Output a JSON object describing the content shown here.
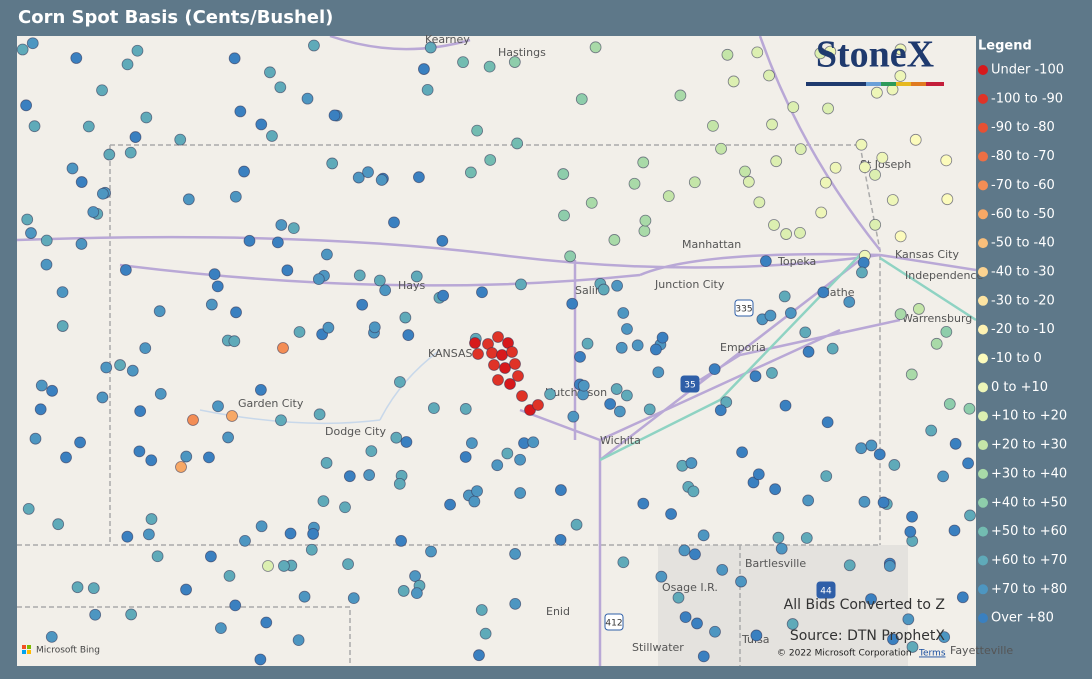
{
  "header": {
    "title": "Corn Spot Basis (Cents/Bushel)"
  },
  "brand": "StoneX",
  "legend": {
    "title": "Legend",
    "items": [
      {
        "label": "Under -100",
        "color": "#d7191c"
      },
      {
        "label": "-100 to -90",
        "color": "#df3327"
      },
      {
        "label": "-90 to -80",
        "color": "#e75033"
      },
      {
        "label": "-80 to -70",
        "color": "#ee6f44"
      },
      {
        "label": "-70 to -60",
        "color": "#f38d55"
      },
      {
        "label": "-60 to -50",
        "color": "#f7a866"
      },
      {
        "label": "-50 to -40",
        "color": "#fabf7b"
      },
      {
        "label": "-40 to -30",
        "color": "#fcd390"
      },
      {
        "label": "-30 to -20",
        "color": "#fde4a2"
      },
      {
        "label": "-20 to -10",
        "color": "#fef2b2"
      },
      {
        "label": "-10 to 0",
        "color": "#fcfbbc"
      },
      {
        "label": "0 to +10",
        "color": "#eef6b8"
      },
      {
        "label": "+10 to +20",
        "color": "#dcefb1"
      },
      {
        "label": "+20 to +30",
        "color": "#c4e5a8"
      },
      {
        "label": "+30 to +40",
        "color": "#a9daa8"
      },
      {
        "label": "+40 to +50",
        "color": "#8ecdab"
      },
      {
        "label": "+50 to +60",
        "color": "#73bcb1"
      },
      {
        "label": "+60 to +70",
        "color": "#5faab9"
      },
      {
        "label": "+70 to +80",
        "color": "#4d96c1"
      },
      {
        "label": "Over +80",
        "color": "#3a80c0"
      }
    ]
  },
  "map": {
    "places": [
      "Kearney",
      "Hastings",
      "St Joseph",
      "Manhattan",
      "Topeka",
      "Kansas City",
      "Independence",
      "Hays",
      "Salina",
      "Junction City",
      "Olathe",
      "Warrensburg",
      "KANSAS",
      "Emporia",
      "Hutchinson",
      "Garden City",
      "Dodge City",
      "Wichita",
      "Bartlesville",
      "Osage I.R.",
      "Enid",
      "Tulsa",
      "Stillwater",
      "Fayetteville"
    ],
    "shields": [
      "335",
      "35",
      "44",
      "412"
    ]
  },
  "notes": [
    "All Bids Converted to Z",
    "Source: DTN ProphetX"
  ],
  "attribution": {
    "bing": "Microsoft Bing",
    "copyright": "© 2022 Microsoft Corporation",
    "terms": "Terms"
  }
}
